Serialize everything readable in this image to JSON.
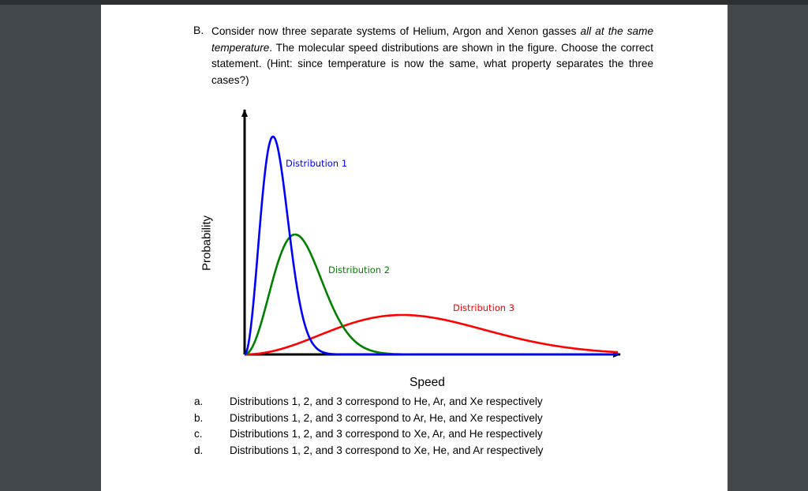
{
  "question": {
    "letter": "B.",
    "text_1": "Consider now three separate systems of Helium, Argon and Xenon gasses ",
    "text_italic": "all at the same temperature",
    "text_2": ". The molecular speed distributions are shown in the figure. Choose the correct statement. (Hint: since temperature is now the same, what property separates the three cases?)"
  },
  "figure": {
    "ylabel": "Probability",
    "xlabel": "Speed",
    "labels": {
      "dist1": "Distribution 1",
      "dist2": "Distribution 2",
      "dist3": "Distribution 3"
    },
    "colors": {
      "dist1": "#0000ff",
      "dist2": "#008000",
      "dist3": "#ff0000",
      "axis": "#000000"
    }
  },
  "choices": [
    {
      "letter": "a.",
      "text": "Distributions 1, 2, and 3 correspond to He, Ar, and Xe respectively"
    },
    {
      "letter": "b.",
      "text": "Distributions 1, 2, and 3 correspond to Ar, He, and Xe respectively"
    },
    {
      "letter": "c.",
      "text": "Distributions 1, 2, and 3 correspond to Xe, Ar, and He respectively"
    },
    {
      "letter": "d.",
      "text": "Distributions 1, 2, and 3 correspond to Xe, He, and Ar respectively"
    }
  ]
}
